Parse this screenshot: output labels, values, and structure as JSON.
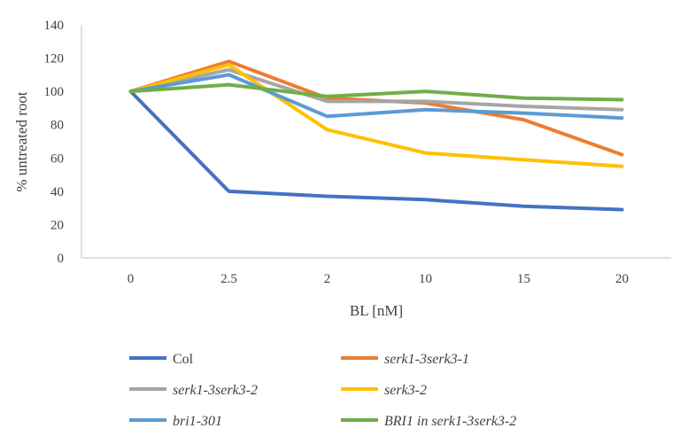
{
  "chart_data": {
    "type": "line",
    "xlabel": "BL  [nM]",
    "ylabel": "% untreated root",
    "categories": [
      "0",
      "2.5",
      "2",
      "10",
      "15",
      "20"
    ],
    "ylim": [
      0,
      140
    ],
    "yticks": [
      0,
      20,
      40,
      60,
      80,
      100,
      120,
      140
    ],
    "grid": false,
    "legend_position": "bottom",
    "series": [
      {
        "name": "Col",
        "color": "#4472C4",
        "italic": false,
        "values": [
          100,
          40,
          37,
          35,
          31,
          29
        ]
      },
      {
        "name": "serk1-3serk3-1",
        "color": "#ED7D31",
        "italic": true,
        "values": [
          100,
          118,
          96,
          93,
          83,
          62
        ]
      },
      {
        "name": "serk1-3serk3-2",
        "color": "#A5A5A5",
        "italic": true,
        "values": [
          100,
          113,
          94,
          94,
          91,
          89
        ]
      },
      {
        "name": "serk3-2",
        "color": "#FFC000",
        "italic": true,
        "values": [
          100,
          116,
          77,
          63,
          59,
          55
        ]
      },
      {
        "name": "bri1-301",
        "color": "#5B9BD5",
        "italic": true,
        "values": [
          100,
          110,
          85,
          89,
          87,
          84
        ]
      },
      {
        "name": "BRI1 in serk1-3serk3-2",
        "color": "#70AD47",
        "italic": true,
        "values": [
          100,
          104,
          97,
          100,
          96,
          95
        ]
      }
    ]
  }
}
